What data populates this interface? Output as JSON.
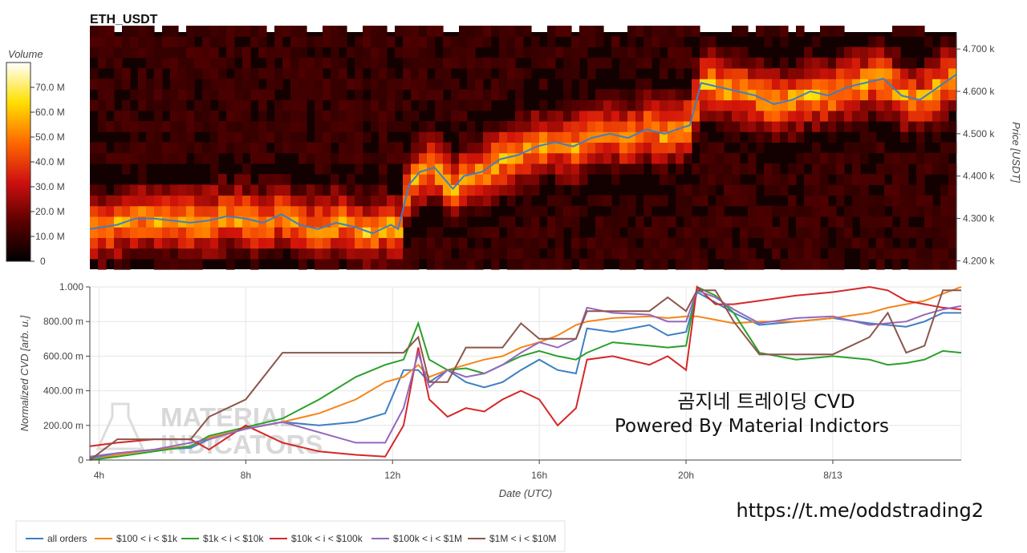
{
  "chart_data": [
    {
      "type": "heatmap",
      "title": "ETH_USDT",
      "ylabel": "Price [USDT]",
      "ylim": [
        4180,
        4740
      ],
      "y_ticks": [
        {
          "value": 4200,
          "label": "4.200 k"
        },
        {
          "value": 4300,
          "label": "4.300 k"
        },
        {
          "value": 4400,
          "label": "4.400 k"
        },
        {
          "value": 4500,
          "label": "4.500 k"
        },
        {
          "value": 4600,
          "label": "4.600 k"
        },
        {
          "value": 4700,
          "label": "4.700 k"
        }
      ],
      "colorbar": {
        "label": "Volume",
        "range": [
          0,
          80
        ],
        "ticks": [
          {
            "value": 0,
            "label": "0"
          },
          {
            "value": 10,
            "label": "10.0 M"
          },
          {
            "value": 20,
            "label": "20.0 M"
          },
          {
            "value": 30,
            "label": "30.0 M"
          },
          {
            "value": 40,
            "label": "40.0 M"
          },
          {
            "value": 50,
            "label": "50.0 M"
          },
          {
            "value": 60,
            "label": "60.0 M"
          },
          {
            "value": 70,
            "label": "70.0 M"
          }
        ]
      },
      "price_line": {
        "color": "#3f7fc1",
        "x": [
          3.75,
          4.5,
          5,
          5.5,
          6,
          6.5,
          7,
          7.5,
          8,
          8.5,
          9,
          9.5,
          10,
          10.5,
          11,
          11.5,
          12,
          12.2,
          12.5,
          12.8,
          13.2,
          13.7,
          14,
          14.5,
          15,
          15.5,
          16,
          16.5,
          17,
          17.5,
          18,
          18.5,
          19,
          19.5,
          20,
          20.2,
          20.5,
          21,
          21.5,
          22,
          22.5,
          23,
          23.5,
          24,
          24.5,
          25,
          25.5,
          26,
          26.5,
          27.5
        ],
        "y": [
          4275,
          4285,
          4300,
          4300,
          4295,
          4290,
          4295,
          4305,
          4300,
          4290,
          4310,
          4285,
          4275,
          4290,
          4280,
          4265,
          4285,
          4275,
          4380,
          4410,
          4420,
          4370,
          4400,
          4410,
          4440,
          4450,
          4470,
          4480,
          4470,
          4490,
          4500,
          4490,
          4510,
          4500,
          4515,
          4520,
          4620,
          4610,
          4600,
          4590,
          4570,
          4580,
          4600,
          4590,
          4610,
          4620,
          4630,
          4590,
          4580,
          4640
        ]
      }
    },
    {
      "type": "line",
      "xlabel": "Date (UTC)",
      "ylabel": "Normalized CVD [arb. u.]",
      "xlim": [
        3.75,
        27.5
      ],
      "ylim": [
        0,
        1
      ],
      "x_ticks": [
        {
          "value": 4,
          "label": "4h"
        },
        {
          "value": 8,
          "label": "8h"
        },
        {
          "value": 12,
          "label": "12h"
        },
        {
          "value": 16,
          "label": "16h"
        },
        {
          "value": 20,
          "label": "20h"
        },
        {
          "value": 24,
          "label": "8/13"
        }
      ],
      "y_ticks": [
        {
          "value": 0,
          "label": "0"
        },
        {
          "value": 0.2,
          "label": "200.00 m"
        },
        {
          "value": 0.4,
          "label": "400.00 m"
        },
        {
          "value": 0.6,
          "label": "600.00 m"
        },
        {
          "value": 0.8,
          "label": "800.00 m"
        },
        {
          "value": 1.0,
          "label": "1.000"
        }
      ],
      "x": [
        3.75,
        4.5,
        5.5,
        6.5,
        7,
        8,
        9,
        10,
        11,
        11.8,
        12.3,
        12.7,
        13,
        13.5,
        14,
        14.5,
        15,
        15.5,
        16,
        16.5,
        17,
        17.3,
        18,
        19,
        19.5,
        20,
        20.3,
        20.8,
        21.3,
        22,
        23,
        24,
        25,
        25.5,
        26,
        26.5,
        27,
        27.5
      ],
      "series": [
        {
          "name": "all orders",
          "color": "#3f7fc1",
          "values": [
            0.01,
            0.04,
            0.06,
            0.07,
            0.12,
            0.18,
            0.22,
            0.2,
            0.22,
            0.27,
            0.52,
            0.52,
            0.45,
            0.52,
            0.45,
            0.42,
            0.45,
            0.52,
            0.58,
            0.52,
            0.5,
            0.76,
            0.74,
            0.78,
            0.72,
            0.74,
            0.97,
            0.91,
            0.85,
            0.78,
            0.8,
            0.82,
            0.79,
            0.78,
            0.77,
            0.8,
            0.85,
            0.85
          ]
        },
        {
          "name": "$100 < i < $1k",
          "color": "#f58518",
          "values": [
            0.0,
            0.03,
            0.06,
            0.08,
            0.13,
            0.18,
            0.22,
            0.27,
            0.35,
            0.45,
            0.48,
            0.55,
            0.48,
            0.52,
            0.55,
            0.58,
            0.6,
            0.65,
            0.68,
            0.72,
            0.78,
            0.8,
            0.82,
            0.83,
            0.82,
            0.83,
            0.83,
            0.81,
            0.79,
            0.8,
            0.8,
            0.82,
            0.85,
            0.88,
            0.9,
            0.92,
            0.96,
            1.0
          ]
        },
        {
          "name": "$1k < i < $10k",
          "color": "#2ca02c",
          "values": [
            0.0,
            0.02,
            0.05,
            0.08,
            0.14,
            0.19,
            0.24,
            0.35,
            0.48,
            0.55,
            0.58,
            0.79,
            0.58,
            0.52,
            0.53,
            0.5,
            0.55,
            0.6,
            0.63,
            0.6,
            0.58,
            0.62,
            0.68,
            0.66,
            0.65,
            0.66,
            1.0,
            0.95,
            0.85,
            0.62,
            0.58,
            0.6,
            0.58,
            0.55,
            0.56,
            0.58,
            0.63,
            0.62
          ]
        },
        {
          "name": "$10k < i < $100k",
          "color": "#d62728",
          "values": [
            0.08,
            0.1,
            0.12,
            0.12,
            0.06,
            0.2,
            0.1,
            0.05,
            0.03,
            0.02,
            0.2,
            0.65,
            0.35,
            0.25,
            0.3,
            0.28,
            0.35,
            0.4,
            0.35,
            0.2,
            0.3,
            0.58,
            0.6,
            0.55,
            0.6,
            0.52,
            1.0,
            0.9,
            0.9,
            0.92,
            0.95,
            0.97,
            1.0,
            0.98,
            0.92,
            0.9,
            0.88,
            0.87
          ]
        },
        {
          "name": "$100k < i < $1M",
          "color": "#9467bd",
          "values": [
            0.02,
            0.04,
            0.06,
            0.1,
            0.12,
            0.18,
            0.22,
            0.16,
            0.1,
            0.1,
            0.3,
            0.62,
            0.42,
            0.52,
            0.48,
            0.5,
            0.55,
            0.62,
            0.68,
            0.65,
            0.7,
            0.88,
            0.85,
            0.84,
            0.8,
            0.8,
            0.98,
            0.94,
            0.87,
            0.79,
            0.82,
            0.83,
            0.78,
            0.79,
            0.8,
            0.84,
            0.87,
            0.89
          ]
        },
        {
          "name": "$1M < i < $10M",
          "color": "#8c564b",
          "values": [
            0.0,
            0.12,
            0.12,
            0.12,
            0.25,
            0.35,
            0.62,
            0.62,
            0.62,
            0.62,
            0.62,
            0.71,
            0.45,
            0.45,
            0.65,
            0.65,
            0.65,
            0.79,
            0.7,
            0.7,
            0.7,
            0.86,
            0.86,
            0.86,
            0.94,
            0.86,
            0.98,
            0.98,
            0.8,
            0.61,
            0.61,
            0.61,
            0.71,
            0.85,
            0.62,
            0.66,
            0.98,
            0.98
          ]
        }
      ]
    }
  ],
  "overlay": {
    "line1": "곰지네 트레이딩 CVD",
    "line2": "Powered By Material Indictors",
    "url": "https://t.me/oddstrading2"
  },
  "watermark": {
    "line1": "MATERIAL",
    "line2": "INDICATORS"
  }
}
